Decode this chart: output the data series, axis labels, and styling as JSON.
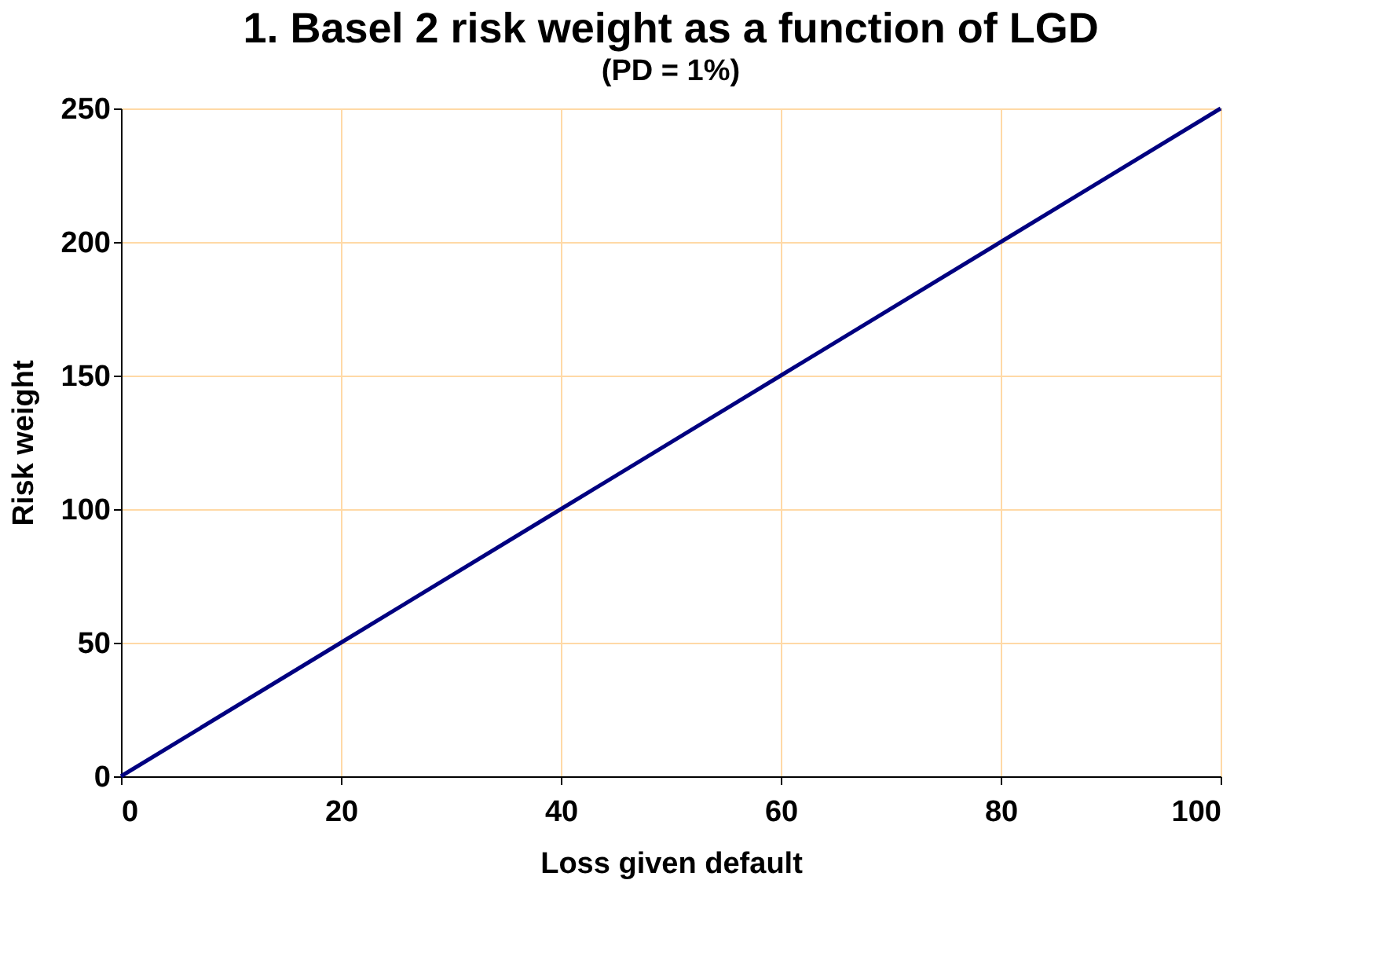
{
  "chart_data": {
    "type": "line",
    "title": "1. Basel 2 risk weight as a function of LGD",
    "subtitle": "(PD = 1%)",
    "xlabel": "Loss given default",
    "ylabel": "Risk weight",
    "x": [
      0,
      20,
      40,
      60,
      80,
      100
    ],
    "series": [
      {
        "color": "#000080",
        "values": [
          0,
          50,
          100,
          150,
          200,
          250
        ]
      }
    ],
    "xlim": [
      0,
      100
    ],
    "xticks": [
      0,
      20,
      40,
      60,
      80,
      100
    ],
    "ylim": [
      0,
      250
    ],
    "yticks": [
      0,
      50,
      100,
      150,
      200,
      250
    ],
    "grid": true,
    "legend": false,
    "marker": "none",
    "line_style": "solid"
  }
}
